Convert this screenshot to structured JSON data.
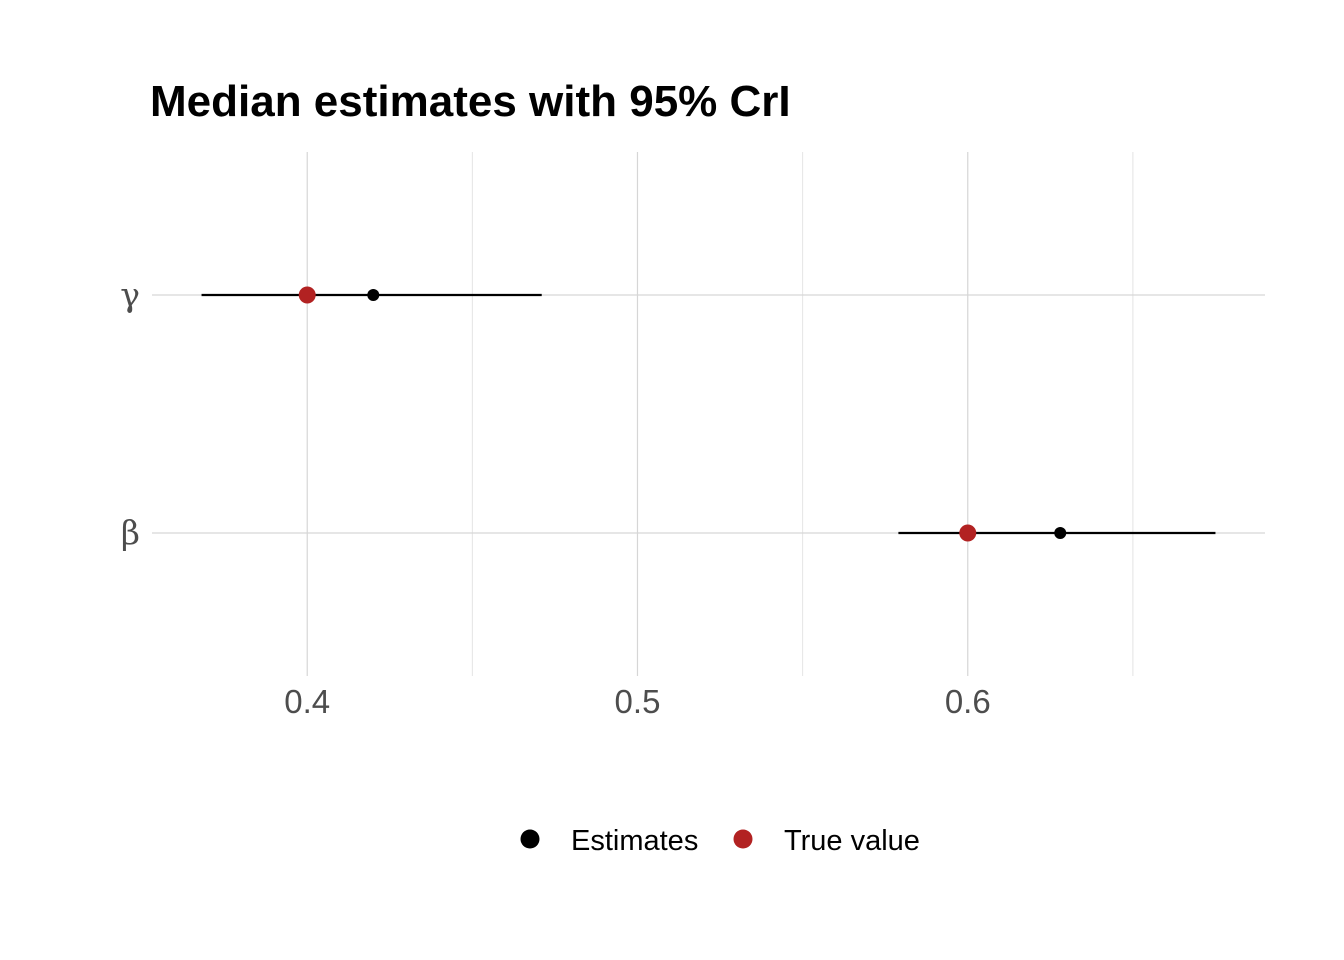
{
  "chart_data": {
    "type": "scatter",
    "title": "Median estimates with 95% CrI",
    "xlabel": "",
    "ylabel": "",
    "xlim": [
      0.353,
      0.69
    ],
    "x_ticks": [
      0.4,
      0.5,
      0.6
    ],
    "x_tick_labels": [
      "0.4",
      "0.5",
      "0.6"
    ],
    "x_minor_ticks": [
      0.45,
      0.55,
      0.65
    ],
    "categories": [
      "γ",
      "β"
    ],
    "grid": true,
    "legend_position": "bottom",
    "series": [
      {
        "name": "Estimates",
        "color": "#000000",
        "points": [
          {
            "category": "γ",
            "value": 0.42,
            "lower": 0.368,
            "upper": 0.471
          },
          {
            "category": "β",
            "value": 0.628,
            "lower": 0.579,
            "upper": 0.675
          }
        ]
      },
      {
        "name": "True value",
        "color": "#b22222",
        "points": [
          {
            "category": "γ",
            "value": 0.4
          },
          {
            "category": "β",
            "value": 0.6
          }
        ]
      }
    ]
  }
}
